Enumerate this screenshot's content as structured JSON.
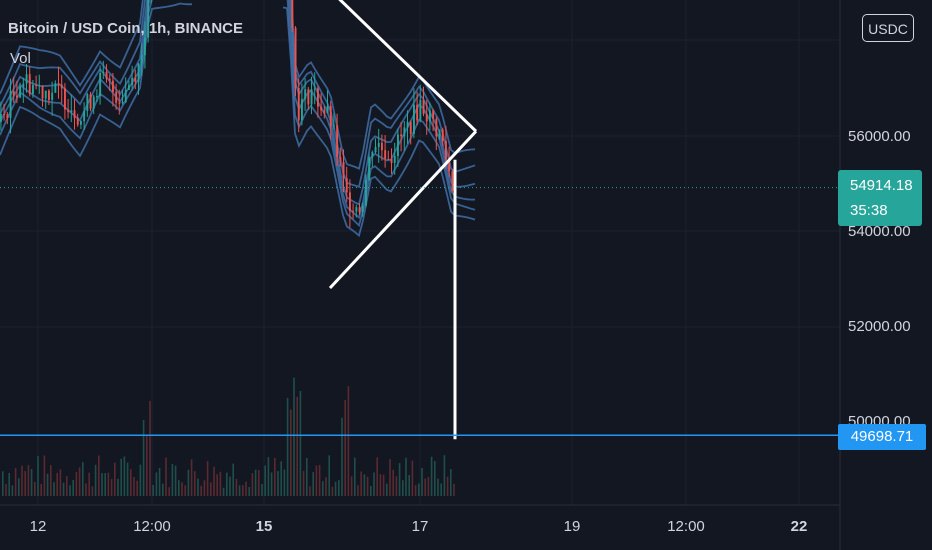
{
  "header": {
    "symbol_title": "Bitcoin / USD Coin, 1h, BINANCE",
    "volume_label": "Vol"
  },
  "currency_button": "USDC",
  "price_tag": {
    "price": "54914.18",
    "countdown": "35:38"
  },
  "level_tag": {
    "value": "49698.71"
  },
  "colors": {
    "background": "#131722",
    "up_candle": "#26a69a",
    "down_candle": "#ef5350",
    "bands": "#3f6ea6",
    "drawing": "#ffffff",
    "level_line": "#2196f3"
  },
  "chart_data": {
    "type": "candlestick",
    "title": "Bitcoin / USD Coin, 1h, BINANCE",
    "x_ticks": [
      "12",
      "12:00",
      "15",
      "17",
      "19",
      "12:00",
      "22"
    ],
    "y_ticks": [
      "56000.00",
      "54000.00",
      "52000.00",
      "50000.00"
    ],
    "ylim": [
      48500,
      59700
    ],
    "last_price": 54914.18,
    "horizontal_level": 49698.71,
    "series": [
      {
        "name": "Vol",
        "type": "volume"
      }
    ],
    "drawings": [
      {
        "type": "triangle_pattern",
        "apex_price": 56100,
        "upper_start_price": 59400,
        "lower_start_price": 52800
      },
      {
        "type": "target_line",
        "from_price": 55500,
        "to_price": 49698.71
      }
    ]
  }
}
